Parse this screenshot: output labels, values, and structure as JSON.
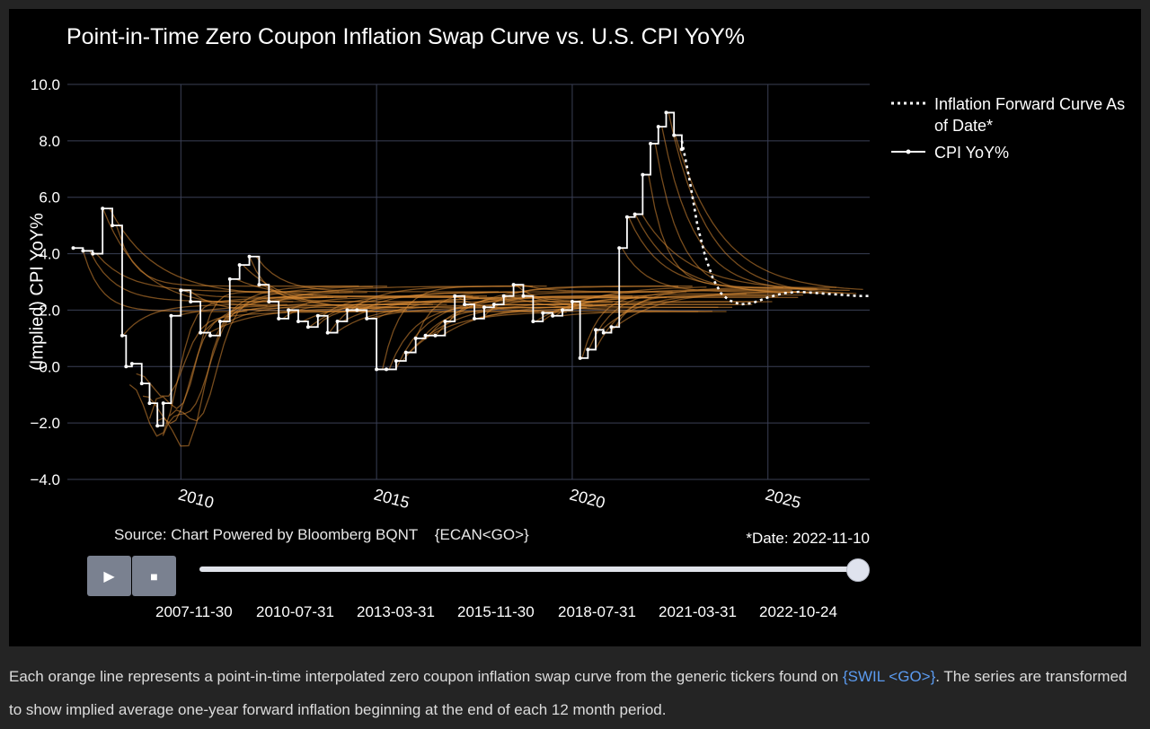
{
  "chart_title": "Point-in-Time Zero Coupon Inflation Swap Curve vs. U.S. CPI YoY%",
  "y_title": "(Implied) CPI YoY%",
  "source_note": "Source: Chart Powered by Bloomberg BQNT    {ECAN<GO>}",
  "date_note": "*Date: 2022-11-10",
  "controls": {
    "play_symbol": "▶",
    "stop_symbol": "■"
  },
  "slider": {
    "steps": [
      "2007-11-30",
      "2010-07-31",
      "2013-03-31",
      "2015-11-30",
      "2018-07-31",
      "2021-03-31",
      "2022-10-24"
    ],
    "current": "2022-10-24",
    "position_fraction": 1.0
  },
  "caption": {
    "text_before": "Each orange line represents a point-in-time interpolated zero coupon inflation swap curve from the generic tickers found on ",
    "link": "{SWIL <GO>}",
    "text_after": ". The series are transformed to show implied average one-year forward inflation beginning at the end of each 12 month period."
  },
  "colors": {
    "background": "#000000",
    "page": "#242424",
    "forward_curves": "#d98a35",
    "cpi_line": "#ffffff",
    "grid": "#3a3f55",
    "link": "#5b9bf0"
  },
  "chart_data": {
    "type": "line",
    "title": "Point-in-Time Zero Coupon Inflation Swap Curve vs. U.S. CPI YoY%",
    "xlabel": "",
    "ylabel": "(Implied) CPI YoY%",
    "xlim": [
      2007.1,
      2027.6
    ],
    "ylim": [
      -4.0,
      10.0
    ],
    "x_ticks": [
      2010,
      2015,
      2020,
      2025
    ],
    "x_tick_labels": [
      "2010",
      "2015",
      "2020",
      "2025"
    ],
    "y_ticks": [
      -4.0,
      -2.0,
      0.0,
      2.0,
      4.0,
      6.0,
      8.0,
      10.0
    ],
    "y_tick_labels": [
      "−4.0",
      "−2.0",
      "0.0",
      "2.0",
      "4.0",
      "6.0",
      "8.0",
      "10.0"
    ],
    "grid": true,
    "legend_position": "top-right outside",
    "series": [
      {
        "name": "Inflation Forward Curve As of Date*",
        "style": "dotted",
        "x": [
          2022.8,
          2023.0,
          2023.2,
          2023.4,
          2023.6,
          2023.8,
          2024.0,
          2024.3,
          2024.6,
          2025.0,
          2025.4,
          2025.8,
          2026.3,
          2026.8,
          2027.3,
          2027.6
        ],
        "y": [
          8.0,
          6.6,
          5.0,
          3.9,
          3.1,
          2.6,
          2.35,
          2.2,
          2.25,
          2.45,
          2.6,
          2.65,
          2.6,
          2.55,
          2.5,
          2.5
        ]
      },
      {
        "name": "CPI YoY%",
        "style": "step-markers",
        "x": [
          2007.25,
          2007.5,
          2007.75,
          2008.0,
          2008.25,
          2008.5,
          2008.6,
          2008.75,
          2009.0,
          2009.2,
          2009.4,
          2009.55,
          2009.75,
          2010.0,
          2010.25,
          2010.5,
          2010.75,
          2011.0,
          2011.25,
          2011.5,
          2011.75,
          2012.0,
          2012.25,
          2012.5,
          2012.75,
          2013.0,
          2013.25,
          2013.5,
          2013.75,
          2014.0,
          2014.25,
          2014.5,
          2014.75,
          2015.0,
          2015.25,
          2015.5,
          2015.75,
          2016.0,
          2016.25,
          2016.5,
          2016.75,
          2017.0,
          2017.25,
          2017.5,
          2017.75,
          2018.0,
          2018.25,
          2018.5,
          2018.75,
          2019.0,
          2019.25,
          2019.5,
          2019.75,
          2020.0,
          2020.2,
          2020.4,
          2020.6,
          2020.8,
          2021.0,
          2021.2,
          2021.4,
          2021.6,
          2021.8,
          2022.0,
          2022.2,
          2022.4,
          2022.6,
          2022.8
        ],
        "y": [
          4.2,
          4.1,
          4.0,
          5.6,
          5.0,
          1.1,
          0.0,
          0.1,
          -0.6,
          -1.3,
          -2.1,
          -1.3,
          1.8,
          2.7,
          2.3,
          1.2,
          1.1,
          1.6,
          3.1,
          3.6,
          3.9,
          2.9,
          2.3,
          1.7,
          2.0,
          1.6,
          1.4,
          1.8,
          1.2,
          1.6,
          2.0,
          2.0,
          1.7,
          -0.1,
          -0.1,
          0.2,
          0.5,
          1.0,
          1.1,
          1.1,
          1.6,
          2.5,
          2.2,
          1.7,
          2.1,
          2.2,
          2.5,
          2.9,
          2.5,
          1.6,
          1.9,
          1.8,
          2.0,
          2.3,
          0.3,
          0.6,
          1.3,
          1.2,
          1.4,
          4.2,
          5.3,
          5.4,
          6.8,
          7.9,
          8.5,
          9.0,
          8.2,
          7.7
        ]
      }
    ]
  }
}
